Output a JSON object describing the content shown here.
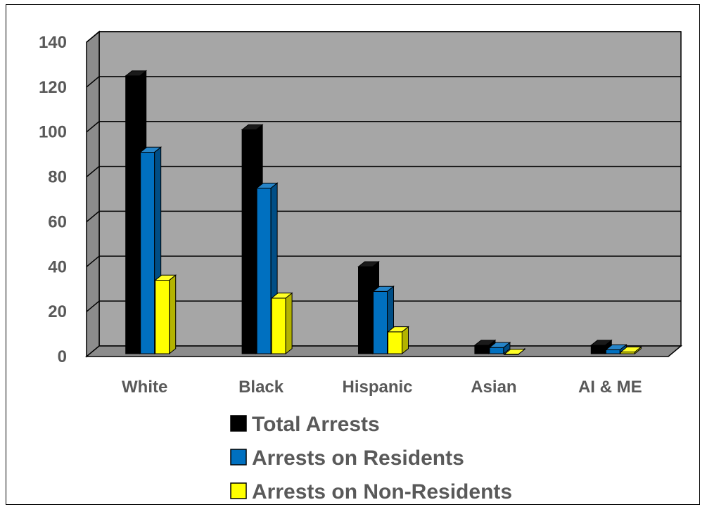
{
  "chart_data": {
    "type": "bar",
    "title": "",
    "xlabel": "",
    "ylabel": "",
    "categories": [
      "White",
      "Black",
      "Hispanic",
      "Asian",
      "AI & ME"
    ],
    "series": [
      {
        "name": "Total Arrests",
        "color": "#000000",
        "values": [
          125,
          101,
          40,
          5,
          5
        ]
      },
      {
        "name": "Arrests on Residents",
        "color": "#0070C0",
        "values": [
          91,
          75,
          29,
          4,
          3
        ]
      },
      {
        "name": "Arrests on Non-Residents",
        "color": "#FFFF00",
        "values": [
          34,
          26,
          11,
          1,
          2
        ]
      }
    ],
    "ylim": [
      0,
      140
    ],
    "yticks": [
      0,
      20,
      40,
      60,
      80,
      100,
      120,
      140
    ],
    "grid": true,
    "legend_position": "bottom",
    "plot_background": "#A6A6A6"
  }
}
